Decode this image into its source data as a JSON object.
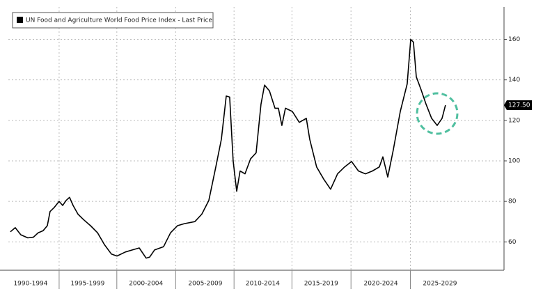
{
  "chart_data": {
    "type": "line",
    "series": [
      {
        "name": "UN Food and Agriculture World Food Price Index - Last Price",
        "color": "#000000",
        "x": [
          1992.61,
          1992.97,
          1993.38,
          1993.89,
          1994.3,
          1994.66,
          1995.02,
          1995.33,
          1995.53,
          1995.84,
          1996.2,
          1996.46,
          1996.72,
          1996.97,
          1997.23,
          1997.59,
          1998.0,
          1998.51,
          1999.03,
          1999.54,
          2000.05,
          2000.46,
          2001.08,
          2001.59,
          2002.1,
          2002.61,
          2002.87,
          2003.23,
          2003.89,
          2004.41,
          2004.92,
          2005.43,
          2006.2,
          2006.71,
          2007.23,
          2007.74,
          2008.15,
          2008.51,
          2008.76,
          2009.02,
          2009.28,
          2009.53,
          2009.89,
          2010.3,
          2010.71,
          2011.07,
          2011.33,
          2011.69,
          2012.1,
          2012.35,
          2012.61,
          2012.87,
          2013.38,
          2013.89,
          2014.41,
          2014.66,
          2015.17,
          2015.69,
          2016.2,
          2016.71,
          2017.23,
          2017.74,
          2018.25,
          2018.76,
          2019.28,
          2019.79,
          2020.05,
          2020.41,
          2020.82,
          2021.33,
          2021.58,
          2021.84,
          2022.1,
          2022.3,
          2022.51,
          2022.87,
          2023.23,
          2023.64,
          2024.05,
          2024.41,
          2024.66
        ],
        "values": [
          65,
          67,
          63.5,
          62,
          62.3,
          64.5,
          65.5,
          68,
          75,
          77,
          80,
          78,
          80.5,
          82,
          78,
          73.7,
          71,
          68,
          64.5,
          58.6,
          54,
          53,
          55,
          56,
          57,
          52,
          52.5,
          56,
          57.6,
          64.5,
          68,
          69,
          70,
          73.7,
          80.5,
          97,
          110.7,
          132,
          131.5,
          100,
          85,
          95,
          93.6,
          101,
          104,
          128,
          137.4,
          134.6,
          126,
          126,
          117.5,
          126,
          124.4,
          119,
          121,
          110.7,
          97,
          91,
          86,
          93.6,
          97,
          99.7,
          95,
          93.6,
          95,
          97,
          102,
          92,
          105.5,
          124.4,
          131,
          138,
          160,
          158.6,
          141.5,
          135,
          128,
          121,
          117.5,
          121,
          127.5
        ],
        "value_labels": [
          null,
          null,
          null,
          null,
          null,
          null,
          null,
          null,
          null,
          null,
          null,
          null,
          null,
          null,
          null,
          null,
          null,
          null,
          null,
          null,
          null,
          null,
          null,
          null,
          null,
          null,
          null,
          null,
          null,
          null,
          null,
          null,
          null,
          null,
          null,
          null,
          null,
          null,
          null,
          null,
          null,
          null,
          null,
          null,
          null,
          null,
          null,
          null,
          null,
          null,
          null,
          null,
          null,
          null,
          null,
          null,
          null,
          null,
          null,
          null,
          null,
          null,
          null,
          null,
          null,
          null,
          null,
          null,
          null,
          null,
          null,
          null,
          null,
          null,
          null,
          null,
          null,
          null,
          null,
          null,
          "127.50"
        ]
      }
    ],
    "xlim": [
      1992.46,
      2028.87
    ],
    "xticks": [
      {
        "value": 1994.1,
        "label": "1990-1994"
      },
      {
        "value": 1998.3,
        "label": "1995-1999"
      },
      {
        "value": 2002.6,
        "label": "2000-2004"
      },
      {
        "value": 2006.97,
        "label": "2005-2009"
      },
      {
        "value": 2011.2,
        "label": "2010-2014"
      },
      {
        "value": 2015.5,
        "label": "2015-2019"
      },
      {
        "value": 2019.9,
        "label": "2020-2024"
      },
      {
        "value": 2024.25,
        "label": "2025-2029"
      }
    ],
    "ylim": [
      46,
      176
    ],
    "yticks": [
      60,
      80,
      100,
      120,
      140,
      160
    ],
    "grid": true
  }
}
